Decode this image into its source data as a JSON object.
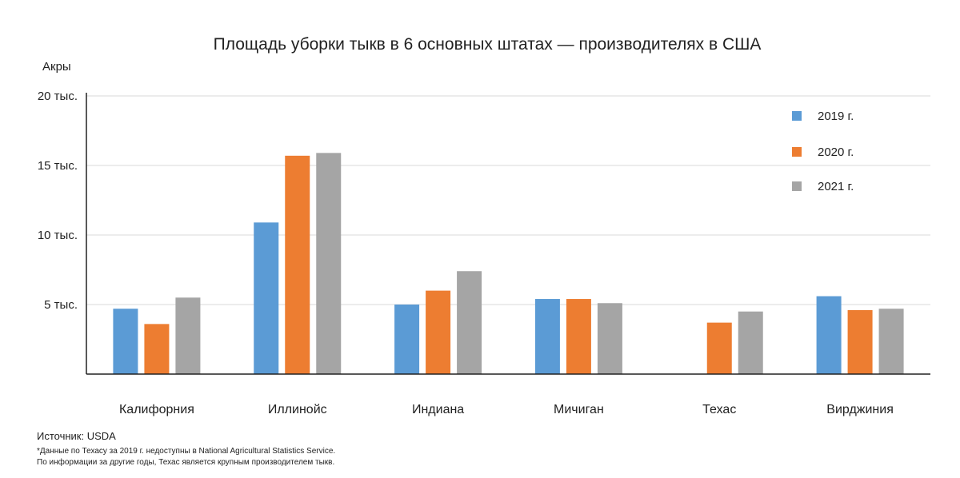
{
  "chart_data": {
    "type": "bar",
    "title": "Площадь уборки тыкв в 6 основных штатах — производителях в США",
    "ylabel": "Акры",
    "xlabel": "",
    "ylim": [
      0,
      20000
    ],
    "yticks": [
      {
        "value": 5000,
        "label": "5 тыс."
      },
      {
        "value": 10000,
        "label": "10 тыс."
      },
      {
        "value": 15000,
        "label": "15 тыс."
      },
      {
        "value": 20000,
        "label": "20 тыс."
      }
    ],
    "grid": true,
    "legend_position": "top-right",
    "categories": [
      "Калифорния",
      "Иллинойс",
      "Индиана",
      "Мичиган",
      "Техас",
      "Вирджиния"
    ],
    "series": [
      {
        "name": "2019 г.",
        "color": "#5b9bd5",
        "values": [
          4700,
          10900,
          5000,
          5400,
          null,
          5600
        ]
      },
      {
        "name": "2020 г.",
        "color": "#ed7d31",
        "values": [
          3600,
          15700,
          6000,
          5400,
          3700,
          4600
        ]
      },
      {
        "name": "2021 г.",
        "color": "#a5a5a5",
        "values": [
          5500,
          15900,
          7400,
          5100,
          4500,
          4700
        ]
      }
    ]
  },
  "footer": {
    "source": "Источник: USDA",
    "notes": [
      "*Данные по Техасу за 2019 г. недоступны в National Agricultural Statistics Service.",
      "По информации за другие годы, Техас является крупным производителем тыкв."
    ]
  }
}
